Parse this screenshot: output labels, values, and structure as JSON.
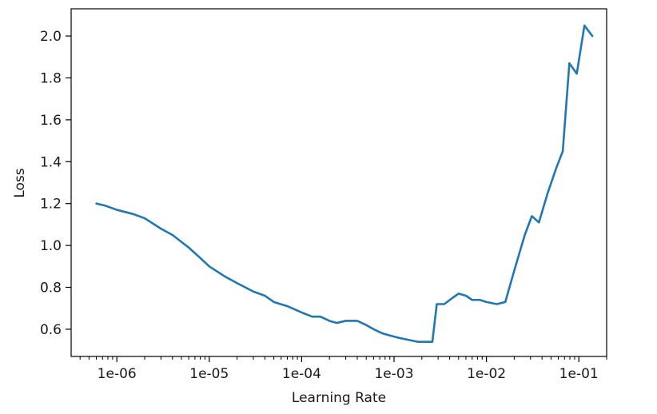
{
  "chart_data": {
    "type": "line",
    "title": "",
    "xlabel": "Learning Rate",
    "ylabel": "Loss",
    "xscale": "log",
    "grid": false,
    "legend": "none",
    "xlim": [
      3.2e-07,
      0.2
    ],
    "ylim": [
      0.47,
      2.13
    ],
    "x_ticks": [
      {
        "value": 1e-06,
        "label": "1e-06"
      },
      {
        "value": 1e-05,
        "label": "1e-05"
      },
      {
        "value": 0.0001,
        "label": "1e-04"
      },
      {
        "value": 0.001,
        "label": "1e-03"
      },
      {
        "value": 0.01,
        "label": "1e-02"
      },
      {
        "value": 0.1,
        "label": "1e-01"
      }
    ],
    "y_ticks": [
      {
        "value": 0.6,
        "label": "0.6"
      },
      {
        "value": 0.8,
        "label": "0.8"
      },
      {
        "value": 1.0,
        "label": "1.0"
      },
      {
        "value": 1.2,
        "label": "1.2"
      },
      {
        "value": 1.4,
        "label": "1.4"
      },
      {
        "value": 1.6,
        "label": "1.6"
      },
      {
        "value": 1.8,
        "label": "1.8"
      },
      {
        "value": 2.0,
        "label": "2.0"
      }
    ],
    "line_color": "#1f77b4",
    "series": [
      {
        "x": [
          6e-07,
          7.5e-07,
          1e-06,
          1.5e-06,
          2e-06,
          3e-06,
          4e-06,
          6e-06,
          8e-06,
          1e-05,
          1.5e-05,
          2e-05,
          3e-05,
          4e-05,
          5e-05,
          7e-05,
          0.0001,
          0.00013,
          0.00016,
          0.0002,
          0.00024,
          0.0003,
          0.0004,
          0.0005,
          0.0006,
          0.00075,
          0.0009,
          0.0011,
          0.0014,
          0.0018,
          0.0022,
          0.0026,
          0.0029,
          0.0035,
          0.0043,
          0.005,
          0.006,
          0.007,
          0.0085,
          0.01,
          0.013,
          0.016,
          0.02,
          0.026,
          0.031,
          0.037,
          0.046,
          0.057,
          0.067,
          0.079,
          0.095,
          0.115,
          0.14
        ],
        "y": [
          1.2,
          1.19,
          1.17,
          1.15,
          1.13,
          1.08,
          1.05,
          0.99,
          0.94,
          0.9,
          0.85,
          0.82,
          0.78,
          0.76,
          0.73,
          0.71,
          0.68,
          0.66,
          0.66,
          0.64,
          0.63,
          0.64,
          0.64,
          0.62,
          0.6,
          0.58,
          0.57,
          0.56,
          0.55,
          0.54,
          0.54,
          0.54,
          0.72,
          0.72,
          0.75,
          0.77,
          0.76,
          0.74,
          0.74,
          0.73,
          0.72,
          0.73,
          0.88,
          1.05,
          1.14,
          1.11,
          1.25,
          1.37,
          1.45,
          1.87,
          1.82,
          2.05,
          2.0
        ]
      }
    ]
  }
}
